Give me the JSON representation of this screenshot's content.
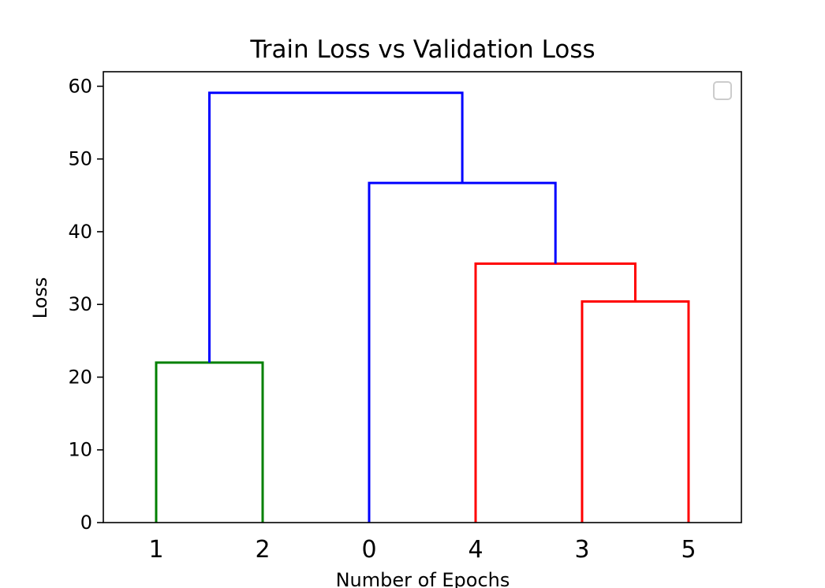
{
  "colors": {
    "background": "#ffffff",
    "axes": "#000000",
    "legend_border": "#cccccc",
    "cluster_green": "#008000",
    "cluster_red": "#ff0000",
    "link_above_threshold": "#0000ff"
  },
  "chart_data": {
    "type": "dendrogram",
    "title": "Train Loss vs Validation Loss",
    "xlabel": "Number of Epochs",
    "ylabel": "Loss",
    "ylim": [
      0,
      62
    ],
    "yticks": [
      0,
      10,
      20,
      30,
      40,
      50,
      60
    ],
    "leaf_labels": [
      "1",
      "2",
      "0",
      "4",
      "3",
      "5"
    ],
    "links": [
      {
        "left": "1",
        "right": "2",
        "height": 22.0,
        "color": "#008000"
      },
      {
        "left": "3",
        "right": "5",
        "height": 30.4,
        "color": "#ff0000"
      },
      {
        "left": "4",
        "right": "(3,5)",
        "height": 35.6,
        "color": "#ff0000"
      },
      {
        "left": "0",
        "right": "(4,(3,5))",
        "height": 46.7,
        "color": "#0000ff"
      },
      {
        "left": "(1,2)",
        "right": "(0,(4,(3,5)))",
        "height": 59.1,
        "color": "#0000ff"
      }
    ],
    "legend": {
      "location": "upper right",
      "entries": []
    },
    "grid": false
  }
}
